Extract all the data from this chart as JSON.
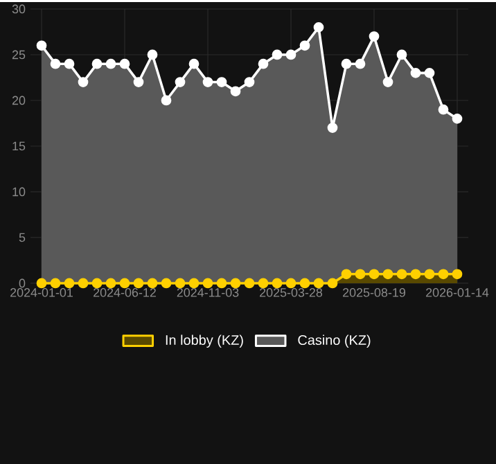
{
  "chart_data": {
    "type": "area",
    "categories": [
      "2024-01-01",
      null,
      null,
      null,
      null,
      null,
      "2024-06-12",
      null,
      null,
      null,
      null,
      null,
      "2024-11-03",
      null,
      null,
      null,
      null,
      null,
      "2025-03-28",
      null,
      null,
      null,
      null,
      null,
      "2025-08-19",
      null,
      null,
      null,
      null,
      null,
      "2026-01-14"
    ],
    "series": [
      {
        "name": "In lobby (KZ)",
        "color": "#ffd000",
        "values": [
          0,
          0,
          0,
          0,
          0,
          0,
          0,
          0,
          0,
          0,
          0,
          0,
          0,
          0,
          0,
          0,
          0,
          0,
          0,
          0,
          0,
          0,
          1,
          1,
          1,
          1,
          1,
          1,
          1,
          1,
          1
        ]
      },
      {
        "name": "Casino (KZ)",
        "color": "#ffffff",
        "values": [
          26,
          24,
          24,
          22,
          24,
          24,
          24,
          22,
          25,
          20,
          22,
          24,
          22,
          22,
          21,
          22,
          24,
          25,
          25,
          26,
          28,
          17,
          24,
          24,
          27,
          22,
          25,
          23,
          23,
          19,
          18
        ]
      }
    ],
    "ylim": [
      0,
      30
    ],
    "yticks": [
      0,
      5,
      10,
      15,
      20,
      25,
      30
    ],
    "grid": true,
    "legend": "bottom",
    "marker": "circle",
    "line_style": "solid"
  }
}
